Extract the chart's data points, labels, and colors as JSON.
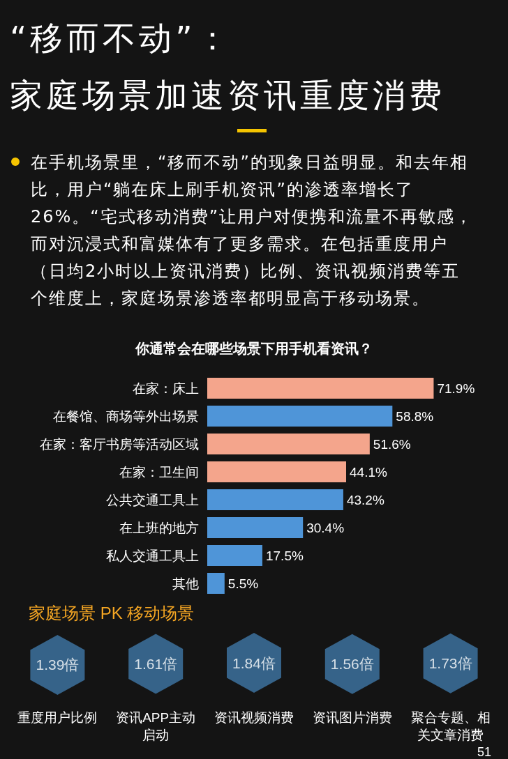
{
  "chart_data": [
    {
      "type": "bar",
      "orientation": "horizontal",
      "title": "“移而不动”：",
      "subtitle": "家庭场景加速资讯重度消费",
      "annotations": [
        "在手机场景里，“移而不动”的现象日益明显。和去年相比，用户“躺在床上刷手机资讯”的渗透率增长了26%。“宅式移动消费”让用户对便携和流量不再敏感，而对沉浸式和富媒体有了更多需求。在包括重度用户（日均2小时以上资讯消费）比例、资讯视频消费等五个维度上，家庭场景渗透率都明显高于移动场景。",
        "你通常会在哪些场景下用手机看资讯？"
      ],
      "categories": [
        "在家：床上",
        "在餐馆、商场等外出场景",
        "在家：客厅书房等活动区域",
        "在家：卫生间",
        "公共交通工具上",
        "在上班的地方",
        "私人交通工具上",
        "其他"
      ],
      "values": [
        71.9,
        58.8,
        51.6,
        44.1,
        43.2,
        30.4,
        17.5,
        5.5
      ],
      "value_labels": [
        "71.9%",
        "58.8%",
        "51.6%",
        "44.1%",
        "43.2%",
        "30.4%",
        "17.5%",
        "5.5%"
      ],
      "colors": [
        "#f4a58c",
        "#4f95d8",
        "#f4a58c",
        "#f4a58c",
        "#4f95d8",
        "#4f95d8",
        "#4f95d8",
        "#4f95d8"
      ]
    },
    {
      "type": "other",
      "title": "家庭场景 PK 移动场景",
      "categories": [
        "重度用户比例",
        "资讯APP主动启动",
        "资讯视频消费",
        "资讯图片消费",
        "聚合专题、相关文章消费"
      ],
      "values": [
        1.39,
        1.61,
        1.84,
        1.56,
        1.73
      ],
      "value_labels": [
        "1.39倍",
        "1.61倍",
        "1.84倍",
        "1.56倍",
        "1.73倍"
      ],
      "color": "#3f77a6",
      "annotations": [
        "51"
      ]
    }
  ]
}
